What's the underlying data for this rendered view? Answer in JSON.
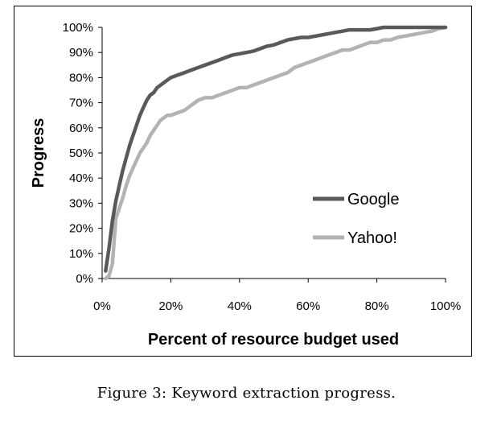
{
  "caption": "Figure 3: Keyword extraction progress.",
  "chart_data": {
    "type": "line",
    "xlabel": "Percent of resource budget used",
    "ylabel": "Progress",
    "xlim": [
      0,
      100
    ],
    "ylim": [
      0,
      100
    ],
    "x_ticks": [
      "0%",
      "20%",
      "40%",
      "60%",
      "80%",
      "100%"
    ],
    "y_ticks": [
      "0%",
      "10%",
      "20%",
      "30%",
      "40%",
      "50%",
      "60%",
      "70%",
      "80%",
      "90%",
      "100%"
    ],
    "grid": false,
    "legend_position": "right",
    "series": [
      {
        "name": "Google",
        "color": "#595959",
        "x": [
          1,
          2,
          3,
          4,
          5,
          6,
          7,
          8,
          9,
          10,
          11,
          12,
          13,
          14,
          15,
          16,
          17,
          18,
          19,
          20,
          22,
          24,
          26,
          28,
          30,
          32,
          34,
          36,
          38,
          40,
          42,
          44,
          46,
          48,
          50,
          52,
          54,
          56,
          58,
          60,
          62,
          64,
          66,
          68,
          70,
          72,
          74,
          76,
          78,
          80,
          82,
          84,
          86,
          88,
          90,
          92,
          94,
          96,
          98,
          100
        ],
        "y": [
          3,
          12,
          23,
          31,
          37,
          43,
          48,
          53,
          57,
          61,
          65,
          68,
          71,
          73,
          74,
          76,
          77,
          78,
          79,
          80,
          81,
          82,
          83,
          84,
          85,
          86,
          87,
          88,
          89,
          89.5,
          90,
          90.5,
          91.5,
          92.5,
          93,
          94,
          95,
          95.5,
          96,
          96,
          96.5,
          97,
          97.5,
          98,
          98.5,
          99,
          99,
          99,
          99,
          99.5,
          100,
          100,
          100,
          100,
          100,
          100,
          100,
          100,
          100,
          100
        ]
      },
      {
        "name": "Yahoo!",
        "color": "#b3b3b3",
        "x": [
          1,
          2,
          3,
          4,
          5,
          6,
          7,
          8,
          9,
          10,
          11,
          12,
          13,
          14,
          15,
          16,
          17,
          18,
          19,
          20,
          22,
          24,
          26,
          28,
          30,
          32,
          34,
          36,
          38,
          40,
          42,
          44,
          46,
          48,
          50,
          52,
          54,
          56,
          58,
          60,
          62,
          64,
          66,
          68,
          70,
          72,
          74,
          76,
          78,
          80,
          82,
          84,
          86,
          88,
          90,
          92,
          94,
          96,
          98,
          100
        ],
        "y": [
          0,
          1,
          6,
          24,
          28,
          32,
          37,
          41,
          44,
          47,
          50,
          52,
          54,
          57,
          59,
          61,
          63,
          64,
          65,
          65,
          66,
          67,
          69,
          71,
          72,
          72,
          73,
          74,
          75,
          76,
          76,
          77,
          78,
          79,
          80,
          81,
          82,
          84,
          85,
          86,
          87,
          88,
          89,
          90,
          91,
          91,
          92,
          93,
          94,
          94,
          95,
          95,
          96,
          96.5,
          97,
          97.5,
          98,
          98.5,
          99.5,
          100
        ]
      }
    ]
  }
}
